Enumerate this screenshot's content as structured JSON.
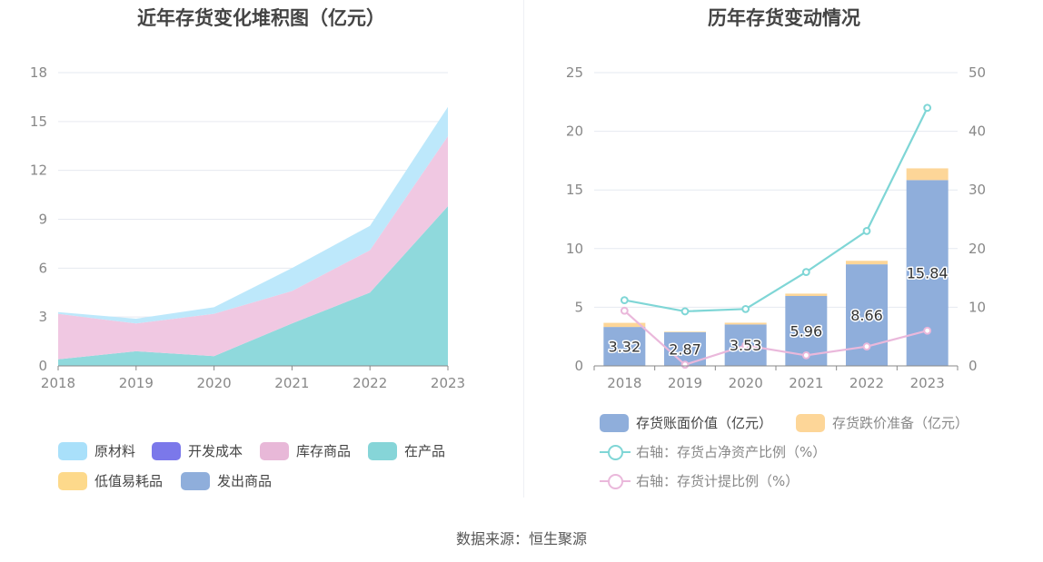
{
  "source_text": "数据来源：恒生聚源",
  "chart_data": [
    {
      "type": "area",
      "stacked": true,
      "title": "近年存货变化堆积图（亿元）",
      "categories": [
        "2018",
        "2019",
        "2020",
        "2021",
        "2022",
        "2023"
      ],
      "ylim": [
        0,
        18
      ],
      "yticks": [
        "0",
        "3",
        "6",
        "9",
        "12",
        "15",
        "18"
      ],
      "grid": true,
      "legend_position": "bottom",
      "series": [
        {
          "name": "在产品",
          "color": "#8fd9dc",
          "values": [
            0.4,
            0.9,
            0.6,
            2.6,
            4.5,
            9.8
          ]
        },
        {
          "name": "库存商品",
          "color": "#f0c8e2",
          "values": [
            2.8,
            1.7,
            2.6,
            2.0,
            2.6,
            4.3
          ]
        },
        {
          "name": "原材料",
          "color": "#bde8fb",
          "values": [
            0.1,
            0.3,
            0.4,
            1.4,
            1.5,
            1.8
          ]
        },
        {
          "name": "开发成本",
          "color": "#7b78ea",
          "values": [
            0,
            0,
            0,
            0,
            0,
            0
          ]
        },
        {
          "name": "低值易耗品",
          "color": "#fdd98b",
          "values": [
            0,
            0,
            0,
            0,
            0,
            0
          ]
        },
        {
          "name": "发出商品",
          "color": "#8faedb",
          "values": [
            0,
            0,
            0,
            0,
            0,
            0
          ]
        }
      ],
      "legend_order": [
        "原材料",
        "开发成本",
        "库存商品",
        "在产品",
        "低值易耗品",
        "发出商品"
      ],
      "legend_colors": {
        "原材料": "#a9e0fa",
        "开发成本": "#7b78ea",
        "库存商品": "#e8b8d8",
        "在产品": "#86d5d8",
        "低值易耗品": "#fdd98b",
        "发出商品": "#8faedb"
      }
    },
    {
      "type": "bar",
      "title": "历年存货变动情况",
      "categories": [
        "2018",
        "2019",
        "2020",
        "2021",
        "2022",
        "2023"
      ],
      "ylim": [
        0,
        25
      ],
      "yticks": [
        "0",
        "5",
        "10",
        "15",
        "20",
        "25"
      ],
      "y2lim": [
        0,
        50
      ],
      "y2ticks": [
        "0",
        "10",
        "20",
        "30",
        "40",
        "50"
      ],
      "grid": true,
      "legend_position": "bottom",
      "bar_series": [
        {
          "name": "存货账面价值（亿元）",
          "color": "#8faedb",
          "values": [
            3.32,
            2.87,
            3.53,
            5.96,
            8.66,
            15.84
          ],
          "labels": [
            "3.32",
            "2.87",
            "3.53",
            "5.96",
            "8.66",
            "15.84"
          ]
        },
        {
          "name": "存货跌价准备（亿元）",
          "color": "#fdd698",
          "values": [
            0.35,
            0.05,
            0.15,
            0.2,
            0.3,
            1.0
          ]
        }
      ],
      "line_series": [
        {
          "name": "右轴：存货占净资产比例（%）",
          "color": "#7fd6d6",
          "axis": "right",
          "values": [
            11.2,
            9.3,
            9.7,
            16.0,
            23.0,
            44.0
          ]
        },
        {
          "name": "右轴：存货计提比例（%）",
          "color": "#eab8db",
          "axis": "right",
          "values": [
            9.4,
            0.2,
            3.5,
            1.8,
            3.3,
            6.0
          ]
        }
      ]
    }
  ]
}
